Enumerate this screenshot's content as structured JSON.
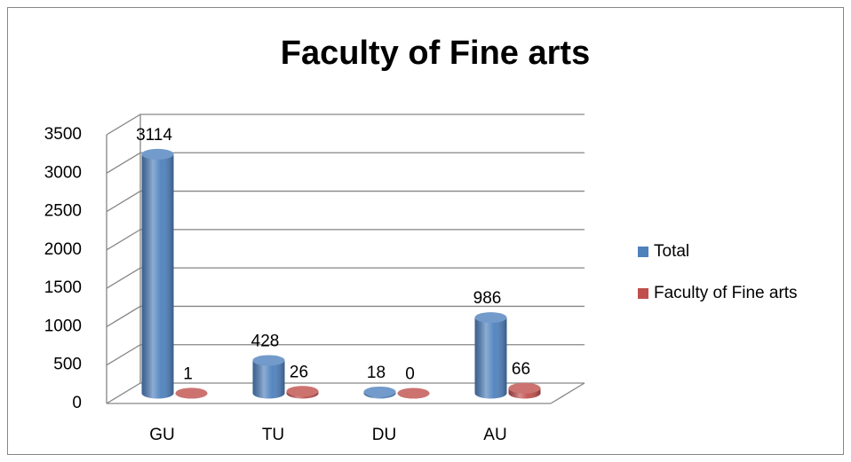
{
  "chart_data": {
    "type": "bar",
    "title": "Faculty of Fine arts",
    "categories": [
      "GU",
      "TU",
      "DU",
      "AU"
    ],
    "series": [
      {
        "name": "Total",
        "color": "#4f81bd",
        "values": [
          3114,
          428,
          18,
          986
        ]
      },
      {
        "name": "Faculty of Fine arts",
        "color": "#c0504d",
        "values": [
          1,
          26,
          0,
          66
        ]
      }
    ],
    "ylim": [
      0,
      3500
    ],
    "yticks": [
      0,
      500,
      1000,
      1500,
      2000,
      2500,
      3000,
      3500
    ],
    "grid": true,
    "legend": "right"
  }
}
